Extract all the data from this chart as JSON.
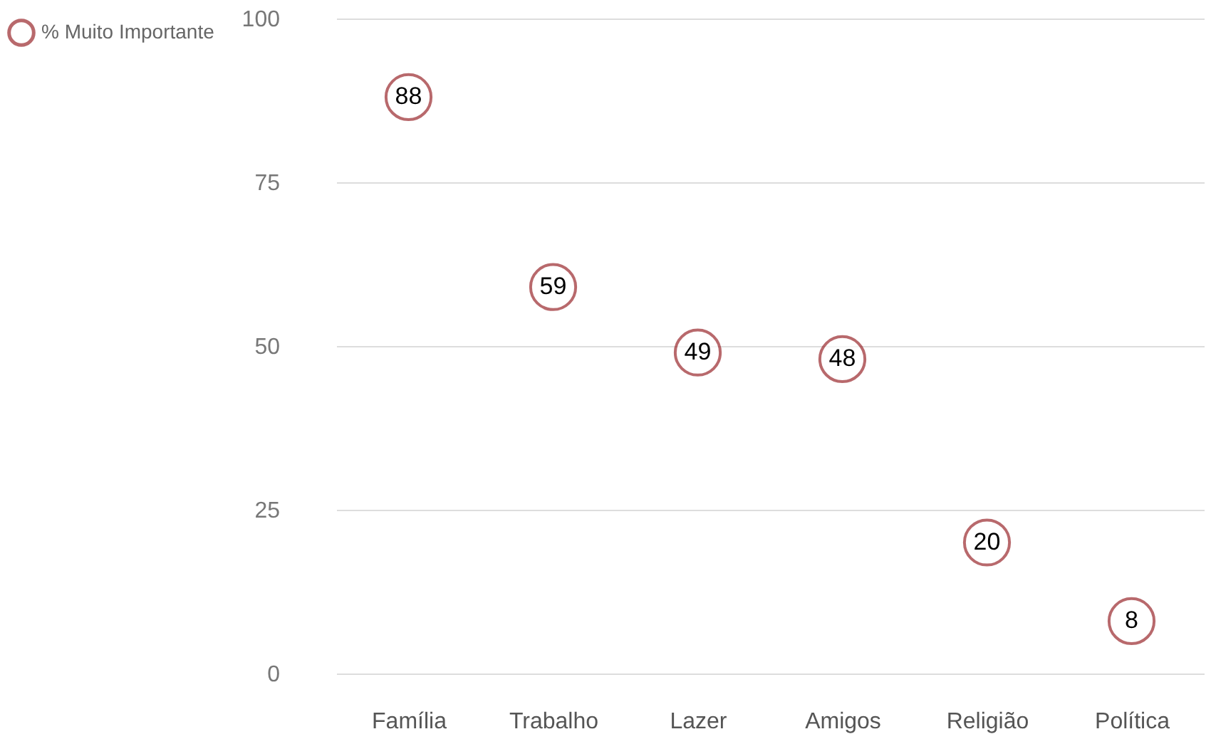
{
  "chart_data": {
    "type": "scatter",
    "categories": [
      "Família",
      "Trabalho",
      "Lazer",
      "Amigos",
      "Religião",
      "Política"
    ],
    "series": [
      {
        "name": "% Muito Importante",
        "color": "#9b2a2f",
        "values": [
          88,
          59,
          49,
          48,
          20,
          8
        ]
      }
    ],
    "ylim": [
      0,
      100
    ],
    "yticks": [
      0,
      25,
      50,
      75,
      100
    ],
    "grid": "y",
    "legend": "left",
    "marker": "circle",
    "data_labels": true
  }
}
